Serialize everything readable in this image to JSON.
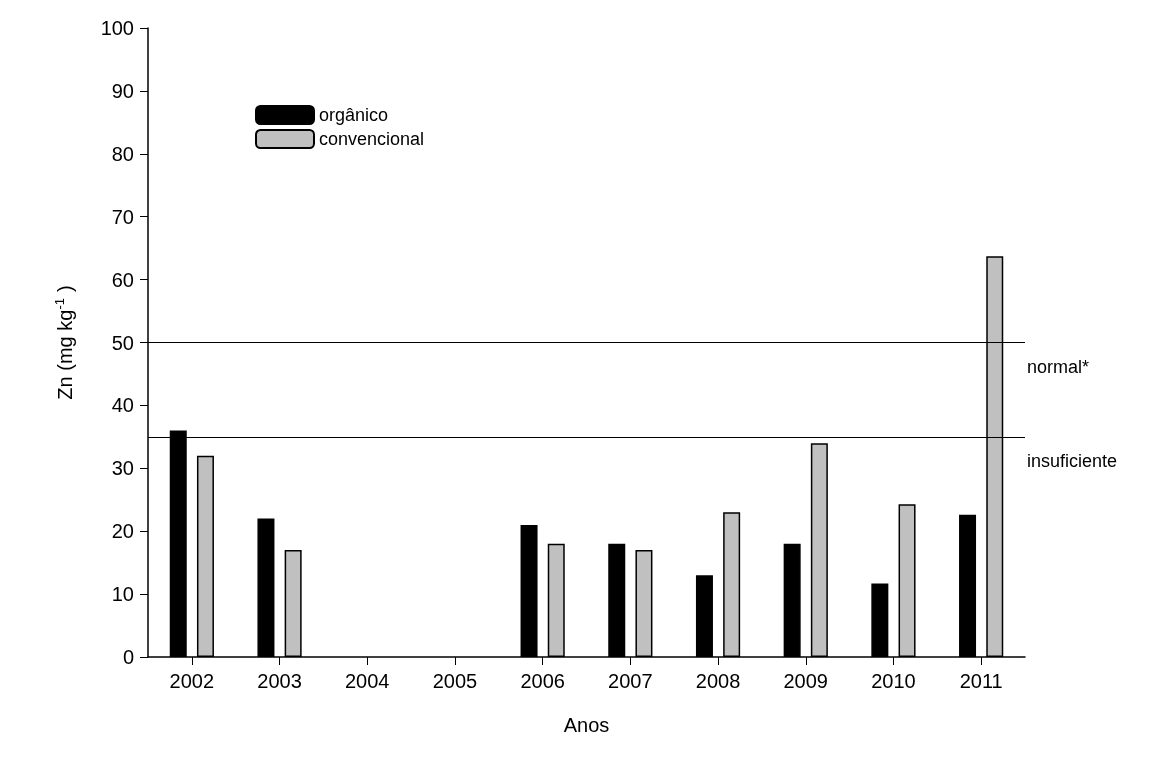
{
  "chart_data": {
    "type": "bar",
    "xlabel": "Anos",
    "ylabel": "Zn (mg kg$^{-1}$)",
    "categories": [
      "2002",
      "2003",
      "2004",
      "2005",
      "2006",
      "2007",
      "2008",
      "2009",
      "2010",
      "2011"
    ],
    "series": [
      {
        "name": "orgânico",
        "color": "#000000",
        "values": [
          36,
          22,
          null,
          null,
          21,
          18,
          13,
          18,
          11.7,
          22.6
        ]
      },
      {
        "name": "convencional",
        "color": "#c0c0c0",
        "values": [
          32,
          17,
          null,
          null,
          18,
          17,
          23,
          34,
          24.3,
          63.7
        ]
      }
    ],
    "ylim": [
      0,
      100
    ],
    "yticks": [
      0,
      10,
      20,
      30,
      40,
      50,
      60,
      70,
      80,
      90,
      100
    ],
    "grid": false,
    "legend": "top left",
    "ref_lines": [
      {
        "axis": "y",
        "value": 50,
        "label": "normal*"
      },
      {
        "axis": "y",
        "value": 35,
        "label": "insuficiente"
      }
    ]
  }
}
